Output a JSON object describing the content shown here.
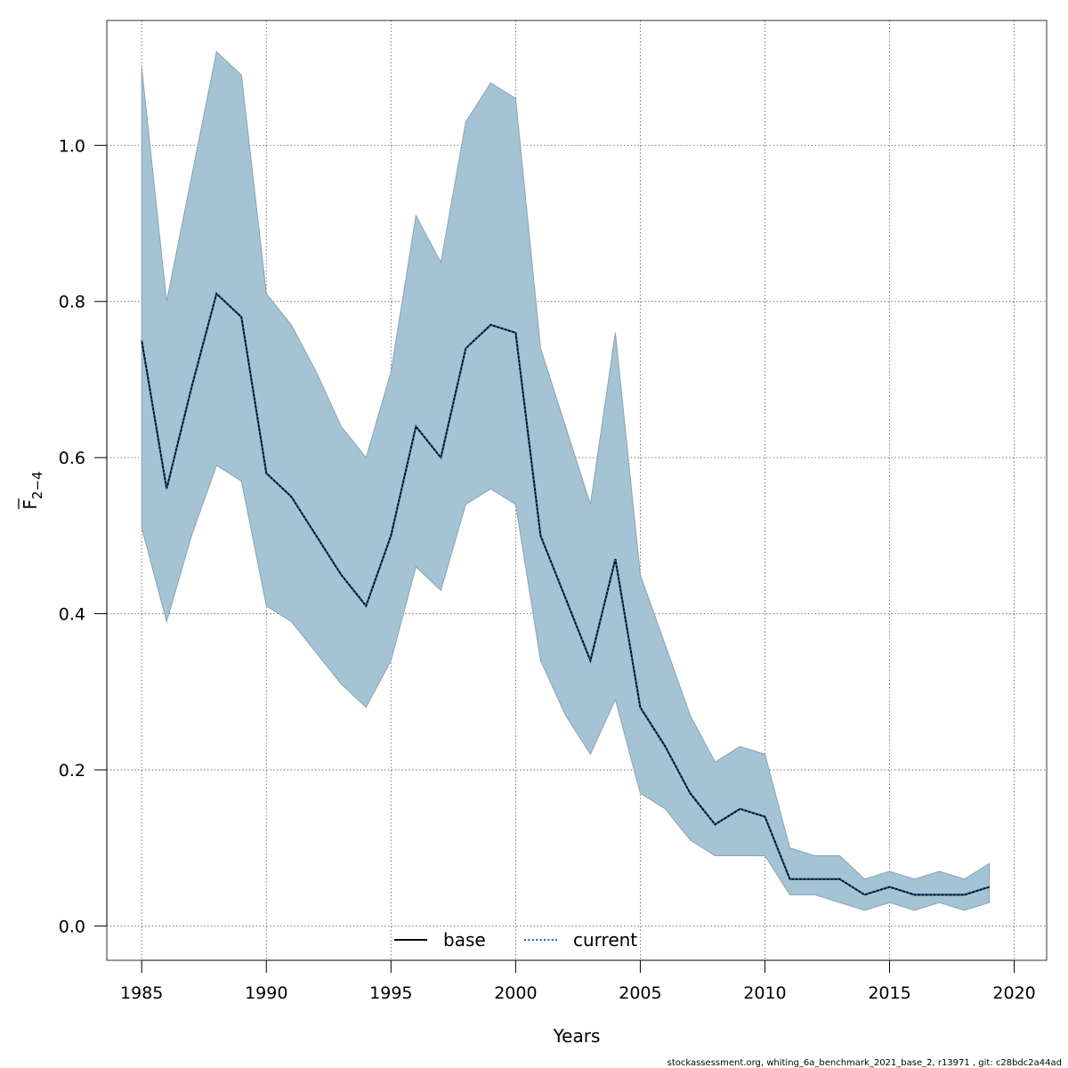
{
  "chart_data": {
    "type": "line",
    "xlabel": "Years",
    "ylabel": {
      "base": "F",
      "subscript": "2−4"
    },
    "xlim": [
      1983.6,
      2021.3
    ],
    "ylim": [
      -0.044,
      1.16
    ],
    "xticks": [
      1985,
      1990,
      1995,
      2000,
      2005,
      2010,
      2015,
      2020
    ],
    "yticks": [
      0.0,
      0.2,
      0.4,
      0.6,
      0.8,
      1.0
    ],
    "ytick_labels": [
      "0.0",
      "0.2",
      "0.4",
      "0.6",
      "0.8",
      "1.0"
    ],
    "grid": true,
    "x": [
      1985,
      1986,
      1987,
      1988,
      1989,
      1990,
      1991,
      1992,
      1993,
      1994,
      1995,
      1996,
      1997,
      1998,
      1999,
      2000,
      2001,
      2002,
      2003,
      2004,
      2005,
      2006,
      2007,
      2008,
      2009,
      2010,
      2011,
      2012,
      2013,
      2014,
      2015,
      2016,
      2017,
      2018,
      2019
    ],
    "band": {
      "name": "confidence interval",
      "color": "#a4c3d5",
      "upper": [
        1.1,
        0.8,
        0.96,
        1.12,
        1.09,
        0.81,
        0.77,
        0.71,
        0.64,
        0.6,
        0.71,
        0.91,
        0.85,
        1.03,
        1.08,
        1.06,
        0.74,
        0.64,
        0.54,
        0.76,
        0.45,
        0.36,
        0.27,
        0.21,
        0.23,
        0.22,
        0.1,
        0.09,
        0.09,
        0.06,
        0.07,
        0.06,
        0.07,
        0.06,
        0.08
      ],
      "lower": [
        0.51,
        0.39,
        0.5,
        0.59,
        0.57,
        0.41,
        0.39,
        0.35,
        0.31,
        0.28,
        0.34,
        0.46,
        0.43,
        0.54,
        0.56,
        0.54,
        0.34,
        0.27,
        0.22,
        0.29,
        0.17,
        0.15,
        0.11,
        0.09,
        0.09,
        0.09,
        0.04,
        0.04,
        0.03,
        0.02,
        0.03,
        0.02,
        0.03,
        0.02,
        0.03
      ]
    },
    "series": [
      {
        "name": "base",
        "style": "solid",
        "color": "#000000",
        "values": [
          0.75,
          0.56,
          0.69,
          0.81,
          0.78,
          0.58,
          0.55,
          0.5,
          0.45,
          0.41,
          0.5,
          0.64,
          0.6,
          0.74,
          0.77,
          0.76,
          0.5,
          0.42,
          0.34,
          0.47,
          0.28,
          0.23,
          0.17,
          0.13,
          0.15,
          0.14,
          0.06,
          0.06,
          0.06,
          0.04,
          0.05,
          0.04,
          0.04,
          0.04,
          0.05
        ]
      },
      {
        "name": "current",
        "style": "dotted",
        "color": "#1f5f9e",
        "values": [
          0.75,
          0.56,
          0.69,
          0.81,
          0.78,
          0.58,
          0.55,
          0.5,
          0.45,
          0.41,
          0.5,
          0.64,
          0.6,
          0.74,
          0.77,
          0.76,
          0.5,
          0.42,
          0.34,
          0.47,
          0.28,
          0.23,
          0.17,
          0.13,
          0.15,
          0.14,
          0.06,
          0.06,
          0.06,
          0.04,
          0.05,
          0.04,
          0.04,
          0.04,
          0.05
        ]
      }
    ],
    "legend": {
      "placement": "bottom-center",
      "entries": [
        "base",
        "current"
      ]
    }
  },
  "footer": "stockassessment.org, whiting_6a_benchmark_2021_base_2, r13971 , git: c28bdc2a44ad"
}
